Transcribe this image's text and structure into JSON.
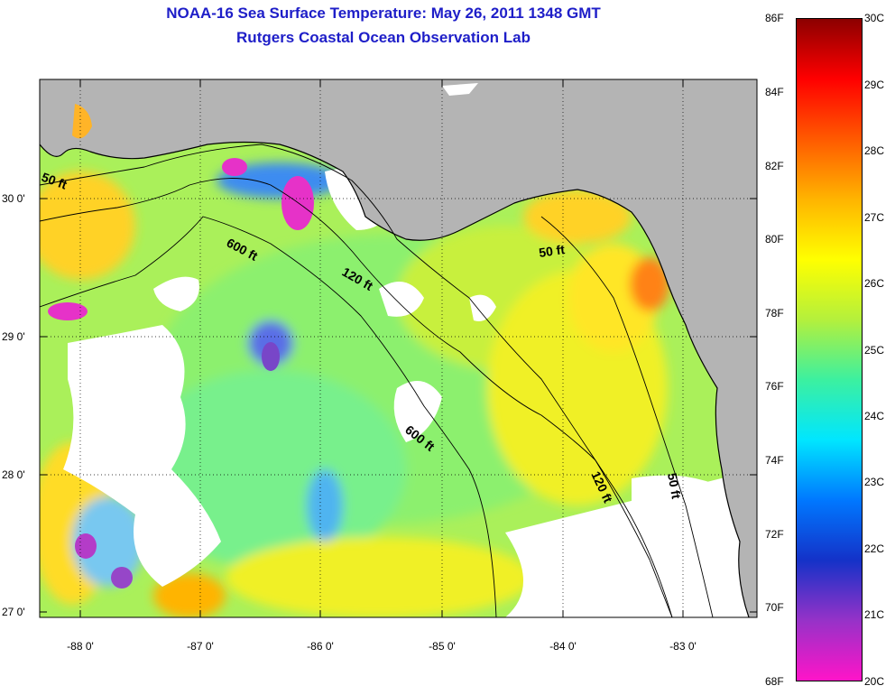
{
  "header": {
    "title": "NOAA-16 Sea Surface Temperature:  May 26, 2011 1348 GMT",
    "subtitle": "Rutgers Coastal Ocean Observation Lab"
  },
  "map": {
    "lat_ticks": [
      "30 0'",
      "29 0'",
      "28 0'",
      "27 0'"
    ],
    "lon_ticks": [
      "-88 0'",
      "-87 0'",
      "-86 0'",
      "-85 0'",
      "-84 0'",
      "-83 0'"
    ],
    "contours": [
      {
        "label": "50 ft"
      },
      {
        "label": "600 ft"
      },
      {
        "label": "120 ft"
      },
      {
        "label": "50 ft"
      },
      {
        "label": "600 ft"
      },
      {
        "label": "120 ft"
      },
      {
        "label": "50 ft"
      }
    ],
    "colors": {
      "land": "#b4b4b4",
      "cloud": "#ffffff"
    }
  },
  "colorbar": {
    "fahrenheit": [
      "86F",
      "84F",
      "82F",
      "80F",
      "78F",
      "76F",
      "74F",
      "72F",
      "70F",
      "68F"
    ],
    "celsius": [
      "30C",
      "29C",
      "28C",
      "27C",
      "26C",
      "25C",
      "24C",
      "23C",
      "22C",
      "21C",
      "20C"
    ],
    "stops": [
      "#ff14c8",
      "#9632c8",
      "#1432c8",
      "#0078ff",
      "#00e6ff",
      "#3cf0a0",
      "#b4f03c",
      "#ffff00",
      "#ffb400",
      "#ff5a00",
      "#ff0000",
      "#8c0000"
    ]
  }
}
